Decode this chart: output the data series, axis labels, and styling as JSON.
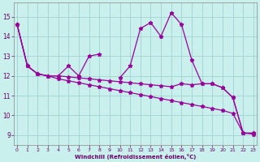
{
  "xlabel": "Windchill (Refroidissement éolien,°C)",
  "x_ticks": [
    0,
    1,
    2,
    3,
    4,
    5,
    6,
    7,
    8,
    9,
    10,
    11,
    12,
    13,
    14,
    15,
    16,
    17,
    18,
    19,
    20,
    21,
    22,
    23
  ],
  "ylim": [
    8.5,
    15.7
  ],
  "xlim": [
    -0.3,
    23.3
  ],
  "yticks": [
    9,
    10,
    11,
    12,
    13,
    14,
    15
  ],
  "bg_color": "#caf0ee",
  "line_color": "#990099",
  "grid_color": "#99cccc",
  "lines": [
    {
      "x": [
        0,
        1,
        2,
        3,
        4,
        5,
        6,
        7,
        8
      ],
      "y": [
        14.6,
        12.5,
        12.1,
        12.0,
        12.0,
        12.5,
        12.0,
        13.0,
        13.1
      ]
    },
    {
      "x": [
        10,
        11,
        12,
        13,
        14,
        15,
        16,
        17,
        18,
        19,
        20,
        21,
        22,
        23
      ],
      "y": [
        11.9,
        12.5,
        14.4,
        14.7,
        14.0,
        15.2,
        14.6,
        12.8,
        11.6,
        11.6,
        11.4,
        10.9,
        9.1,
        9.1
      ]
    },
    {
      "x": [
        0,
        1,
        2,
        3,
        4,
        5,
        6,
        7,
        8,
        9,
        10,
        11,
        12,
        13,
        14,
        15,
        16,
        17,
        18,
        19,
        20,
        21,
        22,
        23
      ],
      "y": [
        14.6,
        12.5,
        12.1,
        12.0,
        11.85,
        11.75,
        11.65,
        11.55,
        11.45,
        11.35,
        11.25,
        11.15,
        11.05,
        10.95,
        10.85,
        10.75,
        10.65,
        10.55,
        10.45,
        10.35,
        10.25,
        10.1,
        9.1,
        9.05
      ]
    },
    {
      "x": [
        0,
        1,
        2,
        3,
        4,
        5,
        6,
        7,
        8,
        9,
        10,
        11,
        12,
        13,
        14,
        15,
        16,
        17,
        18,
        19,
        20,
        21,
        22,
        23
      ],
      "y": [
        14.6,
        12.5,
        12.1,
        12.0,
        12.0,
        11.95,
        11.9,
        11.85,
        11.8,
        11.75,
        11.7,
        11.65,
        11.6,
        11.55,
        11.5,
        11.45,
        11.6,
        11.55,
        11.6,
        11.6,
        11.4,
        10.9,
        9.1,
        9.1
      ]
    }
  ]
}
